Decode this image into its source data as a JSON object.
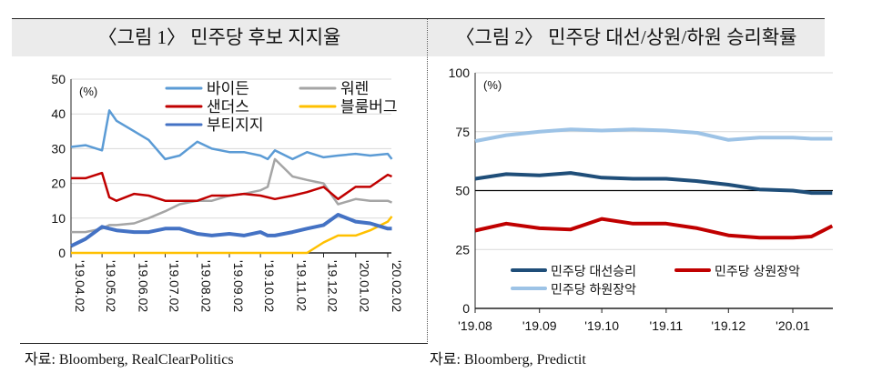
{
  "figures": [
    {
      "title": "〈그림 1〉 민주당 후보 지지율",
      "source": "자료: Bloomberg, RealClearPolitics"
    },
    {
      "title": "〈그림 2〉 민주당 대선/상원/하원 승리확률",
      "source": "자료: Bloomberg, Predictit"
    }
  ],
  "chart_data": [
    {
      "type": "line",
      "unit_label": "(%)",
      "ylim": [
        0,
        50
      ],
      "yticks": [
        0,
        10,
        20,
        30,
        40,
        50
      ],
      "xtick_labels": [
        "'19.04.02",
        "'19.05.02",
        "'19.06.02",
        "'19.07.02",
        "'19.08.02",
        "'19.09.02",
        "'19.10.02",
        "'19.11.02",
        "'19.12.02",
        "'20.01.02",
        "'20.02.02"
      ],
      "xtick_dates": [
        "2019-04-02",
        "2019-05-02",
        "2019-06-02",
        "2019-07-02",
        "2019-08-02",
        "2019-09-02",
        "2019-10-02",
        "2019-11-02",
        "2019-12-02",
        "2020-01-02",
        "2020-02-02"
      ],
      "grid": "horizontal",
      "legend": "top",
      "x": [
        "2019-04-02",
        "2019-04-16",
        "2019-05-02",
        "2019-05-09",
        "2019-05-16",
        "2019-06-02",
        "2019-06-16",
        "2019-07-02",
        "2019-07-16",
        "2019-08-02",
        "2019-08-16",
        "2019-09-02",
        "2019-09-16",
        "2019-10-02",
        "2019-10-09",
        "2019-10-16",
        "2019-11-02",
        "2019-11-16",
        "2019-12-02",
        "2019-12-16",
        "2020-01-02",
        "2020-01-16",
        "2020-02-02",
        "2020-02-06"
      ],
      "series": [
        {
          "name": "바이든",
          "color": "#5b9bd5",
          "width": 2.5,
          "values": [
            30.5,
            31,
            29.5,
            41,
            38,
            35,
            32.5,
            27,
            28,
            32,
            30,
            29,
            29,
            28,
            27,
            29.5,
            27,
            29,
            27.5,
            28,
            28.5,
            28,
            28.5,
            27
          ]
        },
        {
          "name": "워렌",
          "color": "#a5a5a5",
          "width": 2.5,
          "values": [
            6,
            6,
            7,
            8,
            8,
            8.5,
            10,
            12,
            14,
            15,
            15,
            16.5,
            17,
            18,
            19,
            27,
            22,
            21,
            20,
            14,
            15.5,
            15,
            15,
            14.5
          ]
        },
        {
          "name": "샌더스",
          "color": "#c00000",
          "width": 2.5,
          "values": [
            21.5,
            21.5,
            23,
            16,
            15,
            17,
            16.5,
            15,
            15,
            15,
            16.5,
            16.5,
            17,
            16.5,
            16,
            15.5,
            16.5,
            17.5,
            19,
            15.5,
            19,
            19,
            22.5,
            22
          ]
        },
        {
          "name": "블룸버그",
          "color": "#ffc000",
          "width": 2.5,
          "values": [
            0,
            0,
            0,
            0,
            0,
            0,
            0,
            0,
            0,
            0,
            0,
            0,
            0,
            0,
            0,
            0,
            0,
            0,
            3,
            5,
            5,
            6.5,
            9,
            10.5
          ]
        },
        {
          "name": "부티지지",
          "color": "#4472c4",
          "width": 4,
          "values": [
            2,
            4,
            7.5,
            7,
            6.5,
            6,
            6,
            7,
            7,
            5.5,
            5,
            5.5,
            5,
            6,
            5,
            5,
            6,
            7,
            8,
            11,
            9,
            8.5,
            7,
            7
          ]
        }
      ]
    },
    {
      "type": "line",
      "unit_label": "(%)",
      "ylim": [
        0,
        100
      ],
      "yticks": [
        0,
        25,
        50,
        75,
        100
      ],
      "xtick_labels": [
        "'19.08",
        "'19.09",
        "'19.10",
        "'19.11",
        "'19.12",
        "'20.01"
      ],
      "xtick_dates": [
        "2019-08-01",
        "2019-09-01",
        "2019-10-01",
        "2019-11-01",
        "2019-12-01",
        "2020-01-01"
      ],
      "grid": "horizontal",
      "reference_line": 50,
      "legend": "bottom",
      "x": [
        "2019-08-01",
        "2019-08-16",
        "2019-09-01",
        "2019-09-16",
        "2019-10-01",
        "2019-10-16",
        "2019-11-01",
        "2019-11-16",
        "2019-12-01",
        "2019-12-16",
        "2020-01-01",
        "2020-01-10",
        "2020-01-20"
      ],
      "series": [
        {
          "name": "민주당 대선승리",
          "color": "#1f4e79",
          "values": [
            55,
            57,
            56.5,
            57.5,
            55.5,
            55,
            55,
            54,
            52.5,
            50.5,
            50,
            49,
            49
          ]
        },
        {
          "name": "민주당 상원장악",
          "color": "#c00000",
          "values": [
            33,
            36,
            34,
            33.5,
            38,
            36,
            36,
            34,
            31,
            30,
            30,
            30.5,
            35
          ]
        },
        {
          "name": "민주당 하원장악",
          "color": "#9dc3e6",
          "values": [
            71,
            73.5,
            75,
            76,
            75.5,
            76,
            75.5,
            74.5,
            71.5,
            72.5,
            72.5,
            72,
            72
          ]
        }
      ]
    }
  ]
}
